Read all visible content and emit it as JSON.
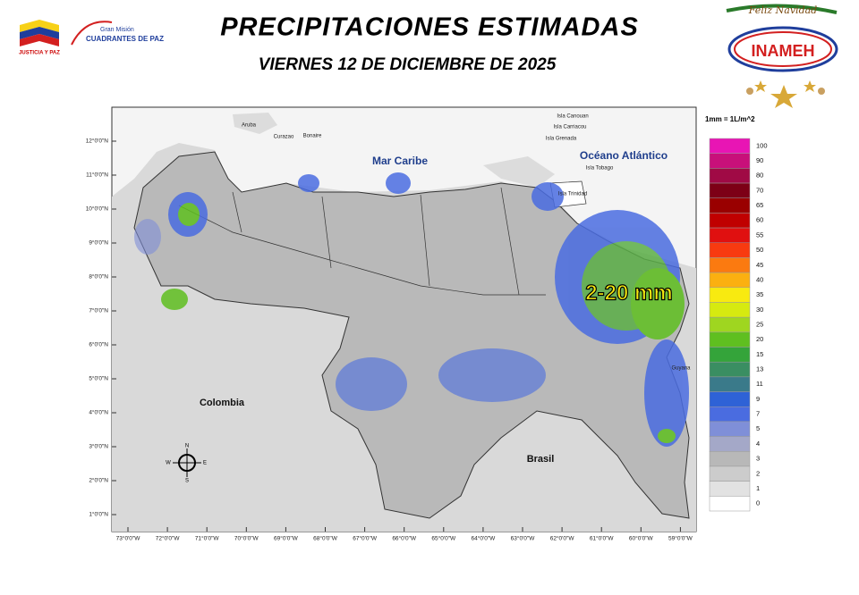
{
  "header": {
    "title": "PRECIPITACIONES ESTIMADAS",
    "subtitle": "VIERNES 12 DE DICIEMBRE DE 2025",
    "left_logo_text": "JUSTICIA Y PAZ",
    "mission_small": "Gran Misión",
    "mission_big": "CUADRANTES DE PAZ",
    "right_logo_greeting": "Feliz Navidad",
    "right_logo_text": "INAMEH"
  },
  "map": {
    "lat_labels": [
      "12°0'0\"N",
      "11°0'0\"N",
      "10°0'0\"N",
      "9°0'0\"N",
      "8°0'0\"N",
      "7°0'0\"N",
      "6°0'0\"N",
      "5°0'0\"N",
      "4°0'0\"N",
      "3°0'0\"N",
      "2°0'0\"N",
      "1°0'0\"N"
    ],
    "lon_labels": [
      "73°0'0\"W",
      "72°0'0\"W",
      "71°0'0\"W",
      "70°0'0\"W",
      "69°0'0\"W",
      "68°0'0\"W",
      "67°0'0\"W",
      "66°0'0\"W",
      "65°0'0\"W",
      "64°0'0\"W",
      "63°0'0\"W",
      "62°0'0\"W",
      "61°0'0\"W",
      "60°0'0\"W",
      "59°0'0\"W"
    ],
    "places": {
      "sea": "Mar Caribe",
      "ocean": "Océano Atlántico",
      "colombia": "Colombia",
      "brasil": "Brasil",
      "guyana": "Guyana",
      "aruba": "Aruba",
      "curazao": "Curazao",
      "bonaire": "Bonaire",
      "canouan": "Isla Canouan",
      "carriacou": "Isla Carriacou",
      "grenada": "Isla Grenada",
      "tobago": "Isla Tobago",
      "trinidad": "Isla Trinidad"
    },
    "annotation": "2-20 mm",
    "compass": {
      "n": "N",
      "s": "S",
      "e": "E",
      "w": "W"
    }
  },
  "legend": {
    "title": "1mm = 1L/m^2",
    "levels": [
      {
        "value": 100,
        "color": "#e815b4"
      },
      {
        "value": 90,
        "color": "#c8107a"
      },
      {
        "value": 80,
        "color": "#a00a45"
      },
      {
        "value": 70,
        "color": "#7d0016"
      },
      {
        "value": 65,
        "color": "#9a0000"
      },
      {
        "value": 60,
        "color": "#c00000"
      },
      {
        "value": 55,
        "color": "#e01010"
      },
      {
        "value": 50,
        "color": "#f83a10"
      },
      {
        "value": 45,
        "color": "#fb7a10"
      },
      {
        "value": 40,
        "color": "#fbb010"
      },
      {
        "value": 35,
        "color": "#f8ea10"
      },
      {
        "value": 30,
        "color": "#d6ea10"
      },
      {
        "value": 25,
        "color": "#9fd620"
      },
      {
        "value": 20,
        "color": "#5fbf20"
      },
      {
        "value": 15,
        "color": "#34a43a"
      },
      {
        "value": 13,
        "color": "#3a8e62"
      },
      {
        "value": 11,
        "color": "#3a7a8a"
      },
      {
        "value": 9,
        "color": "#2e62d6"
      },
      {
        "value": 7,
        "color": "#4a6ce0"
      },
      {
        "value": 5,
        "color": "#7f8fd8"
      },
      {
        "value": 4,
        "color": "#a4a8c8"
      },
      {
        "value": 3,
        "color": "#b8b8b8"
      },
      {
        "value": 2,
        "color": "#cccccc"
      },
      {
        "value": 1,
        "color": "#e2e2e2"
      },
      {
        "value": 0,
        "color": "#ffffff"
      }
    ]
  }
}
